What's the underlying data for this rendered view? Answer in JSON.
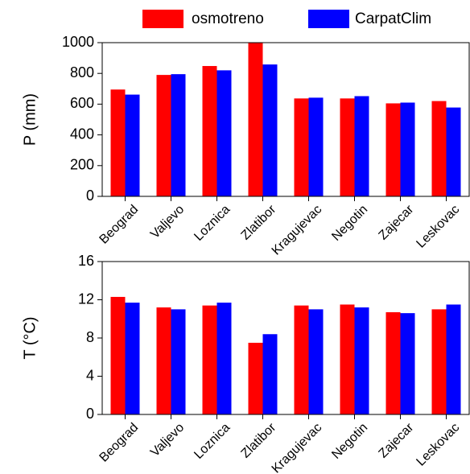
{
  "chart_data": [
    {
      "type": "bar",
      "y_label": "P (mm)",
      "categories": [
        "Beograd",
        "Valjevo",
        "Loznica",
        "Zlatibor",
        "Kragujevac",
        "Negotin",
        "Zajecar",
        "Leskovac"
      ],
      "series": [
        {
          "name": "osmotreno",
          "color": "#ff0000",
          "values": [
            695,
            790,
            848,
            1000,
            637,
            637,
            605,
            620
          ]
        },
        {
          "name": "CarpatClim",
          "color": "#0000ff",
          "values": [
            662,
            795,
            820,
            858,
            642,
            652,
            610,
            578
          ]
        }
      ],
      "ylim": [
        0,
        1000
      ],
      "yticks": [
        0,
        200,
        400,
        600,
        800,
        1000
      ]
    },
    {
      "type": "bar",
      "y_label": "T (°C)",
      "categories": [
        "Beograd",
        "Valjevo",
        "Loznica",
        "Zlatibor",
        "Kragujevac",
        "Negotin",
        "Zajecar",
        "Leskovac"
      ],
      "series": [
        {
          "color": "#ff0000",
          "values": [
            12.3,
            11.2,
            11.4,
            7.5,
            11.4,
            11.5,
            10.7,
            11.0
          ]
        },
        {
          "color": "#0000ff",
          "values": [
            11.7,
            11.0,
            11.7,
            8.4,
            11.0,
            11.2,
            10.6,
            11.5
          ]
        }
      ],
      "ylim": [
        0,
        16
      ],
      "yticks": [
        0,
        4,
        8,
        12,
        16
      ]
    }
  ]
}
